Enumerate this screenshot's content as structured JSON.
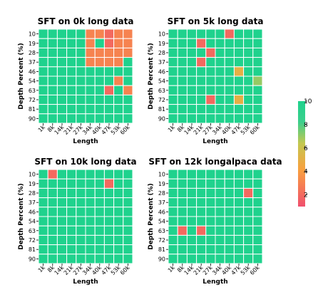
{
  "chart_data": {
    "type": "heatmap",
    "x_ticks": [
      "1k",
      "8k",
      "14k",
      "21k",
      "27k",
      "34k",
      "40k",
      "47k",
      "53k",
      "60k"
    ],
    "y_ticks": [
      "10",
      "19",
      "28",
      "37",
      "46",
      "54",
      "63",
      "72",
      "81",
      "90"
    ],
    "xlabel": "Length",
    "ylabel": "Depth Percent (%)",
    "colorbar": {
      "min": 1,
      "max": 10,
      "ticks": [
        "2",
        "4",
        "6",
        "8",
        "10"
      ]
    },
    "colorscale": [
      "#f0506e",
      "#f9a03f",
      "#c3c850",
      "#3ccf8c",
      "#1fd28d"
    ],
    "panels": [
      {
        "title": "SFT on 0k long data",
        "values": [
          [
            10,
            10,
            10,
            10,
            10,
            3,
            3,
            2,
            3,
            3
          ],
          [
            10,
            10,
            10,
            10,
            10,
            3,
            10,
            2,
            3,
            3
          ],
          [
            10,
            10,
            10,
            10,
            10,
            3,
            3,
            3,
            3,
            3
          ],
          [
            10,
            10,
            10,
            10,
            10,
            3,
            3,
            3,
            3,
            10
          ],
          [
            10,
            10,
            10,
            10,
            10,
            10,
            10,
            10,
            10,
            10
          ],
          [
            10,
            10,
            10,
            10,
            10,
            10,
            10,
            10,
            3,
            10
          ],
          [
            10,
            10,
            10,
            10,
            10,
            10,
            10,
            2,
            10,
            3
          ],
          [
            10,
            10,
            10,
            10,
            10,
            10,
            10,
            10,
            10,
            10
          ],
          [
            10,
            10,
            10,
            10,
            10,
            10,
            10,
            10,
            10,
            10
          ],
          [
            10,
            10,
            10,
            10,
            10,
            10,
            10,
            10,
            10,
            10
          ]
        ]
      },
      {
        "title": "SFT on 5k long data",
        "values": [
          [
            10,
            10,
            10,
            10,
            10,
            10,
            2,
            10,
            10,
            10
          ],
          [
            10,
            10,
            10,
            2,
            10,
            10,
            10,
            10,
            10,
            10
          ],
          [
            10,
            10,
            10,
            10,
            2,
            10,
            10,
            10,
            10,
            10
          ],
          [
            10,
            10,
            10,
            2,
            10,
            10,
            10,
            10,
            10,
            10
          ],
          [
            10,
            10,
            10,
            10,
            10,
            10,
            10,
            5,
            10,
            10
          ],
          [
            10,
            10,
            10,
            10,
            10,
            10,
            10,
            10,
            10,
            7
          ],
          [
            10,
            10,
            10,
            10,
            10,
            10,
            10,
            10,
            10,
            10
          ],
          [
            10,
            10,
            10,
            10,
            2,
            10,
            10,
            5,
            10,
            10
          ],
          [
            10,
            10,
            10,
            10,
            10,
            10,
            10,
            10,
            10,
            10
          ],
          [
            10,
            10,
            10,
            10,
            10,
            10,
            10,
            10,
            10,
            10
          ]
        ]
      },
      {
        "title": "SFT on 10k long data",
        "values": [
          [
            10,
            2,
            10,
            10,
            10,
            10,
            10,
            10,
            10,
            10
          ],
          [
            10,
            10,
            10,
            10,
            10,
            10,
            10,
            2,
            10,
            10
          ],
          [
            10,
            10,
            10,
            10,
            10,
            10,
            10,
            10,
            10,
            10
          ],
          [
            10,
            10,
            10,
            10,
            10,
            10,
            10,
            10,
            10,
            10
          ],
          [
            10,
            10,
            10,
            10,
            10,
            10,
            10,
            10,
            10,
            10
          ],
          [
            10,
            10,
            10,
            10,
            10,
            10,
            10,
            10,
            10,
            10
          ],
          [
            10,
            10,
            10,
            10,
            10,
            10,
            10,
            10,
            10,
            10
          ],
          [
            10,
            10,
            10,
            10,
            10,
            10,
            10,
            10,
            10,
            10
          ],
          [
            10,
            10,
            10,
            10,
            10,
            10,
            10,
            10,
            10,
            10
          ],
          [
            10,
            10,
            10,
            10,
            10,
            10,
            10,
            10,
            10,
            10
          ]
        ]
      },
      {
        "title": "SFT on 12k longalpaca data",
        "values": [
          [
            10,
            10,
            10,
            10,
            10,
            10,
            10,
            10,
            10,
            10
          ],
          [
            10,
            10,
            10,
            10,
            10,
            10,
            10,
            10,
            10,
            10
          ],
          [
            10,
            10,
            10,
            10,
            10,
            10,
            10,
            10,
            2,
            10
          ],
          [
            10,
            10,
            10,
            10,
            10,
            10,
            10,
            10,
            10,
            10
          ],
          [
            10,
            10,
            10,
            10,
            10,
            10,
            10,
            10,
            10,
            10
          ],
          [
            10,
            10,
            10,
            10,
            10,
            10,
            10,
            10,
            10,
            10
          ],
          [
            10,
            2,
            10,
            2,
            10,
            10,
            10,
            10,
            10,
            10
          ],
          [
            10,
            10,
            10,
            10,
            10,
            10,
            10,
            10,
            10,
            10
          ],
          [
            10,
            10,
            10,
            10,
            10,
            10,
            10,
            10,
            10,
            10
          ],
          [
            10,
            10,
            10,
            10,
            10,
            10,
            10,
            10,
            10,
            10
          ]
        ]
      }
    ]
  }
}
